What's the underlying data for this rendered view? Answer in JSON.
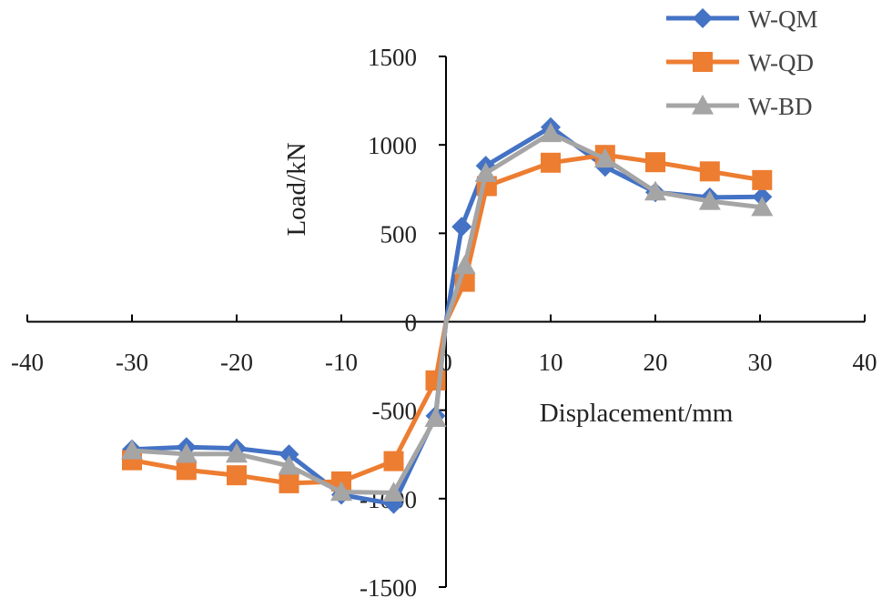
{
  "chart_data": {
    "type": "line",
    "title": "",
    "xlabel": "Displacement/mm",
    "ylabel": "Load/kN",
    "xlim": [
      -40,
      40
    ],
    "ylim": [
      -1500,
      1500
    ],
    "xticks": [
      -40,
      -30,
      -20,
      -10,
      0,
      10,
      20,
      30,
      40
    ],
    "yticks": [
      -1500,
      -1000,
      -500,
      0,
      500,
      1000,
      1500
    ],
    "xtick_labels": [
      "-40",
      "-30",
      "-20",
      "-10",
      "0",
      "10",
      "20",
      "30",
      "40"
    ],
    "ytick_labels": [
      "-1500",
      "-1000",
      "-500",
      "0",
      "500",
      "1000",
      "1500"
    ],
    "grid": false,
    "legend_position": "top-right",
    "series": [
      {
        "name": "W-QM",
        "color": "#4472C4",
        "marker": "diamond",
        "points": [
          [
            -30,
            -722
          ],
          [
            -24.8,
            -709
          ],
          [
            -20,
            -716
          ],
          [
            -15,
            -750
          ],
          [
            -10,
            -978
          ],
          [
            -5,
            -1030
          ],
          [
            -1,
            -532
          ],
          [
            0,
            0
          ],
          [
            1.5,
            537
          ],
          [
            3.8,
            882
          ],
          [
            10,
            1100
          ],
          [
            15.2,
            876
          ],
          [
            20,
            732
          ],
          [
            25.2,
            703
          ],
          [
            30.2,
            706
          ]
        ]
      },
      {
        "name": "W-QD",
        "color": "#ED7D31",
        "marker": "square",
        "points": [
          [
            -30,
            -783
          ],
          [
            -24.8,
            -838
          ],
          [
            -20,
            -868
          ],
          [
            -15,
            -913
          ],
          [
            -10,
            -903
          ],
          [
            -5,
            -788
          ],
          [
            -1,
            -332
          ],
          [
            0,
            0
          ],
          [
            1.8,
            226
          ],
          [
            3.9,
            767
          ],
          [
            10,
            899
          ],
          [
            15.2,
            943
          ],
          [
            20,
            902
          ],
          [
            25.2,
            850
          ],
          [
            30.2,
            801
          ]
        ]
      },
      {
        "name": "W-BD",
        "color": "#A5A5A5",
        "marker": "triangle",
        "points": [
          [
            -30,
            -728
          ],
          [
            -24.8,
            -748
          ],
          [
            -20,
            -747
          ],
          [
            -15,
            -815
          ],
          [
            -10,
            -963
          ],
          [
            -5,
            -967
          ],
          [
            -1,
            -545
          ],
          [
            0,
            0
          ],
          [
            1.8,
            318
          ],
          [
            3.8,
            840
          ],
          [
            10,
            1065
          ],
          [
            15.2,
            921
          ],
          [
            20,
            735
          ],
          [
            25.2,
            682
          ],
          [
            30.2,
            647
          ]
        ]
      }
    ]
  }
}
